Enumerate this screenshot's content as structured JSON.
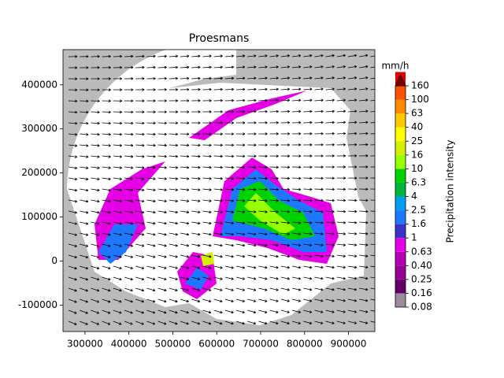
{
  "chart_data": {
    "type": "map",
    "title": "Proesmans",
    "xlim": [
      250000,
      960000
    ],
    "xticks": [
      300000,
      400000,
      500000,
      600000,
      700000,
      800000,
      900000
    ],
    "ylim": [
      -160000,
      480000
    ],
    "yticks": [
      -100000,
      0,
      100000,
      200000,
      300000,
      400000
    ],
    "outside_color": "#bbbbbb",
    "colorbar": {
      "label": "Precipitation intensity",
      "unit": "mm/h",
      "ticks": [
        0.08,
        0.16,
        0.25,
        {
          "value": 0.4,
          "label": "0.40"
        },
        0.63,
        1,
        1.6,
        2.5,
        4,
        6.3,
        10,
        16,
        25,
        40,
        63,
        100,
        160
      ],
      "colors": [
        "#9c8a9e",
        "#640064",
        "#960096",
        "#b400b4",
        "#e600e6",
        "#3c32c8",
        "#1e78ff",
        "#00a0f0",
        "#00b43c",
        "#00d200",
        "#96ff00",
        "#d2f000",
        "#ffff00",
        "#ffc800",
        "#ff8c00",
        "#ff5000",
        "#e00000"
      ],
      "extend_color": "#780000"
    }
  }
}
